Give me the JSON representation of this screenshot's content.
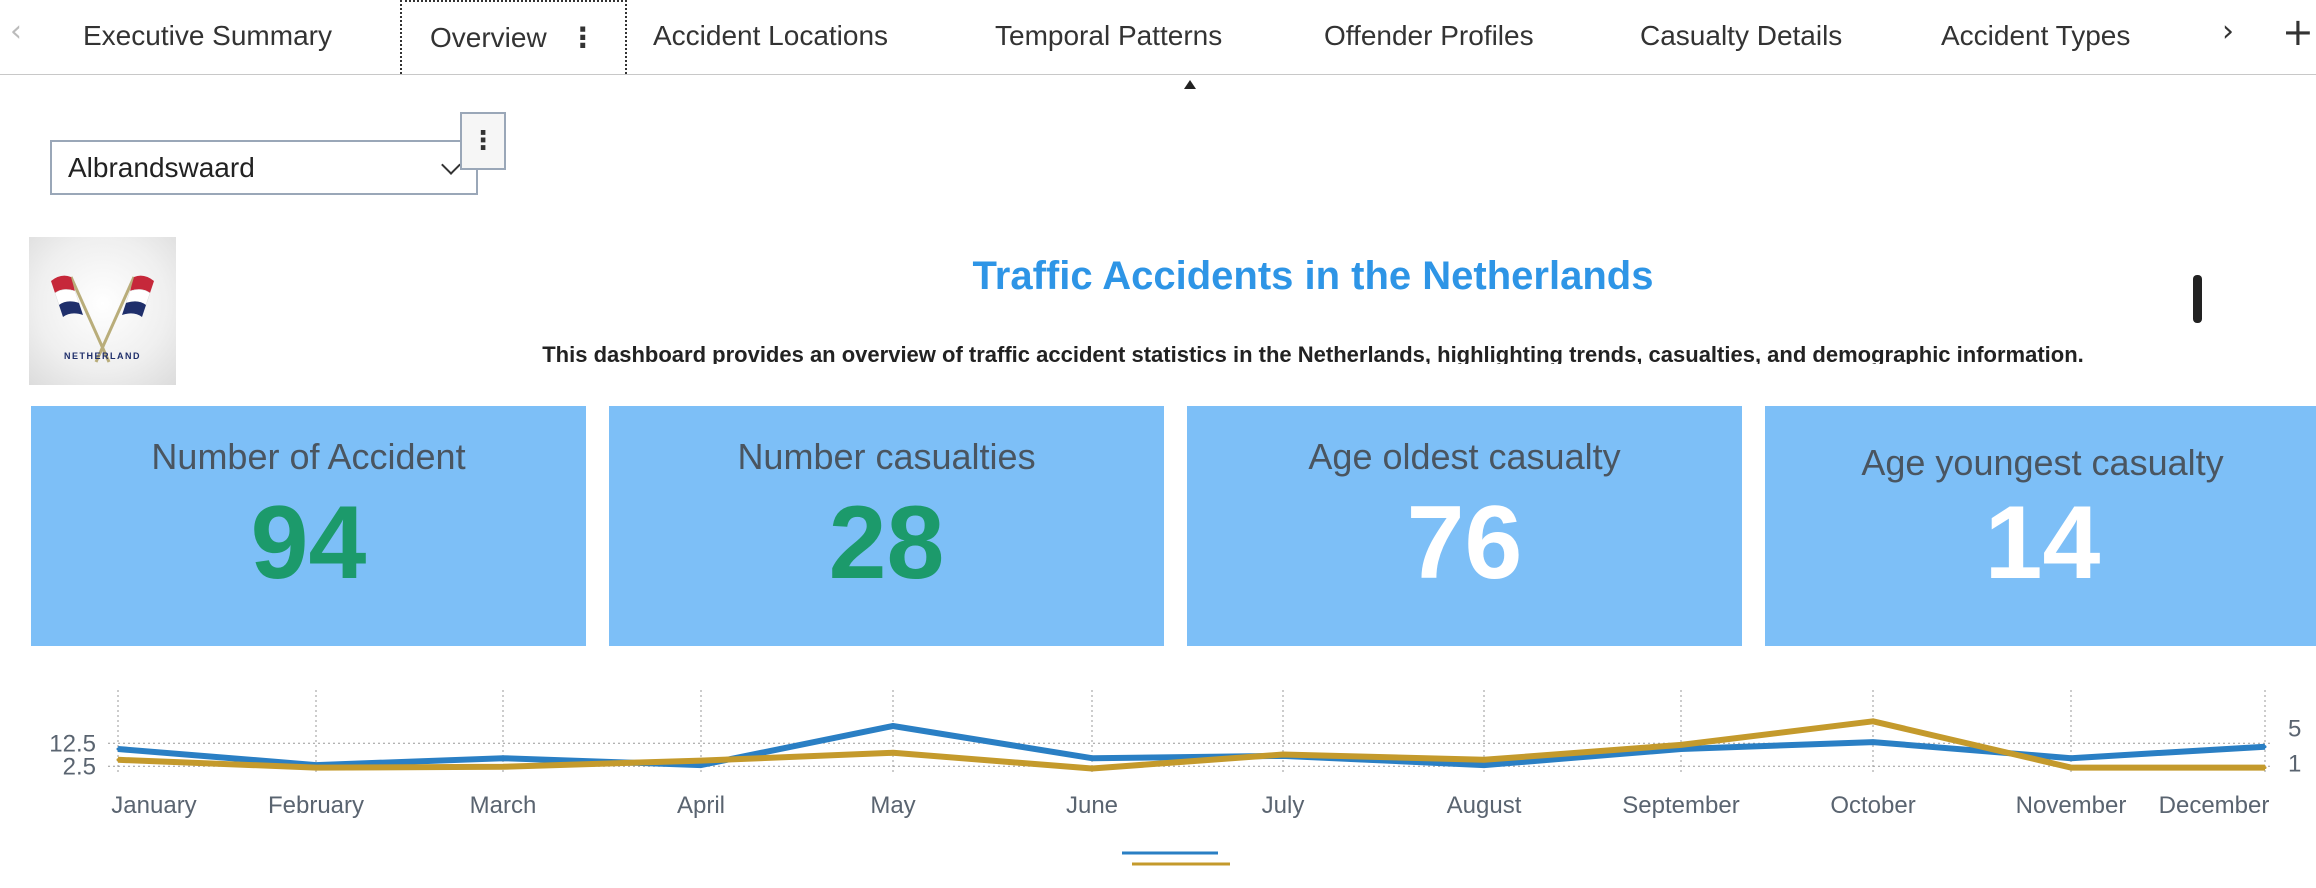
{
  "tabs": [
    {
      "label": "Executive Summary"
    },
    {
      "label": "Overview",
      "menu_glyph": "⋮"
    },
    {
      "label": "Accident Locations"
    },
    {
      "label": "Temporal Patterns"
    },
    {
      "label": "Offender Profiles"
    },
    {
      "label": "Casualty Details"
    },
    {
      "label": "Accident Types"
    }
  ],
  "nav": {
    "prev": "‹",
    "next": "›",
    "add": "+"
  },
  "filter": {
    "selected": "Albrandswaard",
    "menu_glyph": "⋮"
  },
  "logo": {
    "text": "NETHERLAND"
  },
  "header": {
    "title": "Traffic Accidents in the Netherlands",
    "subtitle": "This dashboard provides an overview of traffic accident statistics in the Netherlands, highlighting trends, casualties, and demographic information."
  },
  "kpis": [
    {
      "label": "Number of  Accident",
      "value": "94"
    },
    {
      "label": "Number casualties",
      "value": "28"
    },
    {
      "label": "Age oldest casualty",
      "value": "76"
    },
    {
      "label": "Age youngest casualty",
      "value": "14"
    }
  ],
  "colors": {
    "tab_text": "#333333",
    "title": "#2e95e6",
    "kpi_bg": "#7dbff7",
    "kpi_green": "#1c9a6b",
    "series_blue": "#2a7fc4",
    "series_gold": "#c49a2c"
  },
  "chart_data": {
    "type": "line",
    "categories": [
      "January",
      "February",
      "March",
      "April",
      "May",
      "June",
      "July",
      "August",
      "September",
      "October",
      "November",
      "December"
    ],
    "series": [
      {
        "axis": "left",
        "color": "#2a7fc4",
        "values": [
          10,
          3,
          6,
          3,
          20,
          6,
          7,
          3,
          10,
          13,
          6,
          11
        ]
      },
      {
        "axis": "right",
        "color": "#c49a2c",
        "values": [
          1.4,
          0.5,
          0.6,
          1.3,
          2.2,
          0.4,
          2.0,
          1.4,
          3.1,
          5.8,
          0.5,
          0.5
        ]
      }
    ],
    "left_axis": {
      "ticks": [
        "12.5",
        "2.5"
      ],
      "tick_values": [
        12.5,
        2.5
      ],
      "range": [
        0,
        21
      ]
    },
    "right_axis": {
      "ticks": [
        "5",
        "1"
      ],
      "tick_values": [
        5,
        1
      ],
      "range": [
        0,
        6.1
      ]
    },
    "grid": "dotted"
  }
}
